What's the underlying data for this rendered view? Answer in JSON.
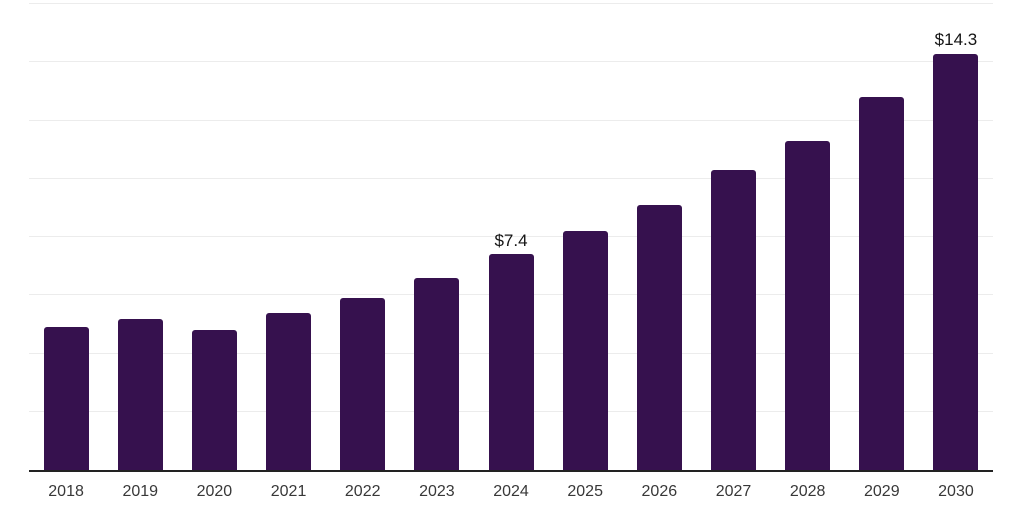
{
  "chart_data": {
    "type": "bar",
    "title": "",
    "xlabel": "",
    "ylabel": "",
    "categories": [
      "2018",
      "2019",
      "2020",
      "2021",
      "2022",
      "2023",
      "2024",
      "2025",
      "2026",
      "2027",
      "2028",
      "2029",
      "2030"
    ],
    "values": [
      4.9,
      5.2,
      4.8,
      5.4,
      5.9,
      6.6,
      7.4,
      8.2,
      9.1,
      10.3,
      11.3,
      12.8,
      14.3
    ],
    "value_annotations": [
      {
        "index": 6,
        "text": "$7.4"
      },
      {
        "index": 12,
        "text": "$14.3"
      }
    ],
    "ylim": [
      0,
      16
    ],
    "grid_step": 2,
    "grid": true,
    "legend": "none",
    "y_axis_labels_visible": false,
    "colors": {
      "bar": "#36114e",
      "grid": "#ececec",
      "axis": "#222222",
      "tick_label": "#383838",
      "value_label": "#141414",
      "background": "#ffffff"
    }
  }
}
